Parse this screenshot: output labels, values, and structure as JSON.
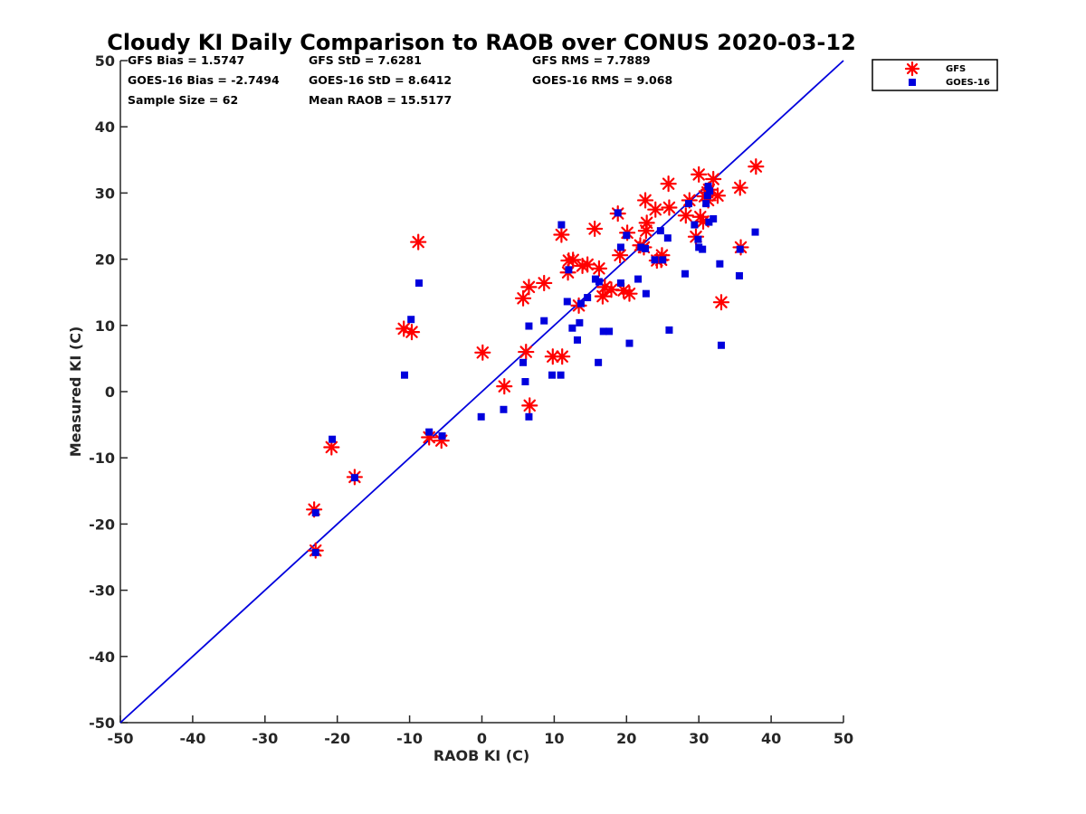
{
  "chart_data": {
    "type": "scatter",
    "title": "Cloudy KI Daily Comparison to RAOB over CONUS 2020-03-12",
    "xlabel": "RAOB KI (C)",
    "ylabel": "Measured KI (C)",
    "xlim": [
      -50,
      50
    ],
    "ylim": [
      -50,
      50
    ],
    "xticks": [
      "-50",
      "-40",
      "-30",
      "-20",
      "-10",
      "0",
      "10",
      "20",
      "30",
      "40",
      "50"
    ],
    "yticks": [
      "50",
      "40",
      "30",
      "20",
      "10",
      "0",
      "-10",
      "-20",
      "-30",
      "-40",
      "-50"
    ],
    "grid": false,
    "legend_position": "outside-top-right",
    "reference_line": {
      "x": [
        -50,
        50
      ],
      "y": [
        -50,
        50
      ],
      "color": "#0000dd"
    },
    "stats": {
      "gfs_bias": "GFS Bias = 1.5747",
      "gfs_std": "GFS StD = 7.6281",
      "gfs_rms": "GFS RMS = 7.7889",
      "goes_bias": "GOES-16 Bias = -2.7494",
      "goes_std": "GOES-16 StD = 8.6412",
      "goes_rms": "GOES-16 RMS = 9.068",
      "sample_size": "Sample Size = 62",
      "mean_raob": "Mean RAOB = 15.5177"
    },
    "series": [
      {
        "name": "GFS",
        "marker": "asterisk",
        "color": "#ff0000",
        "points": [
          [
            -23.2,
            -17.8
          ],
          [
            -23.0,
            -24.0
          ],
          [
            -20.8,
            -8.4
          ],
          [
            -17.6,
            -12.9
          ],
          [
            -10.8,
            9.5
          ],
          [
            -9.7,
            9.0
          ],
          [
            -8.8,
            22.6
          ],
          [
            -7.3,
            -6.9
          ],
          [
            -5.6,
            -7.4
          ],
          [
            0.1,
            5.9
          ],
          [
            3.1,
            0.8
          ],
          [
            5.7,
            14.1
          ],
          [
            6.1,
            6.0
          ],
          [
            6.5,
            15.8
          ],
          [
            6.6,
            -2.1
          ],
          [
            8.6,
            16.4
          ],
          [
            9.8,
            5.3
          ],
          [
            11.1,
            5.3
          ],
          [
            11.0,
            23.7
          ],
          [
            11.9,
            18.0
          ],
          [
            12.0,
            19.8
          ],
          [
            12.6,
            19.9
          ],
          [
            13.4,
            13.0
          ],
          [
            13.9,
            19.0
          ],
          [
            14.6,
            19.2
          ],
          [
            15.6,
            24.6
          ],
          [
            16.2,
            18.6
          ],
          [
            16.7,
            14.4
          ],
          [
            17.0,
            15.8
          ],
          [
            17.9,
            15.4
          ],
          [
            18.8,
            26.9
          ],
          [
            19.1,
            20.6
          ],
          [
            19.6,
            15.3
          ],
          [
            20.1,
            24.0
          ],
          [
            20.4,
            14.8
          ],
          [
            21.9,
            22.1
          ],
          [
            22.4,
            21.8
          ],
          [
            22.6,
            28.9
          ],
          [
            22.7,
            24.3
          ],
          [
            22.8,
            25.5
          ],
          [
            24.0,
            27.5
          ],
          [
            24.8,
            19.9
          ],
          [
            24.9,
            20.6
          ],
          [
            25.8,
            31.4
          ],
          [
            25.9,
            27.8
          ],
          [
            28.2,
            26.6
          ],
          [
            28.7,
            28.9
          ],
          [
            29.6,
            23.4
          ],
          [
            30.0,
            32.8
          ],
          [
            30.2,
            26.4
          ],
          [
            30.6,
            25.7
          ],
          [
            31.2,
            30.1
          ],
          [
            31.3,
            28.9
          ],
          [
            31.4,
            30.5
          ],
          [
            32.0,
            32.1
          ],
          [
            32.6,
            29.6
          ],
          [
            33.1,
            13.5
          ],
          [
            35.7,
            30.8
          ],
          [
            35.8,
            21.8
          ],
          [
            37.9,
            34.0
          ],
          [
            30.8,
            29.5
          ],
          [
            24.2,
            19.8
          ]
        ]
      },
      {
        "name": "GOES-16",
        "marker": "square",
        "color": "#0000dd",
        "points": [
          [
            -23.0,
            -18.3
          ],
          [
            -23.0,
            -24.3
          ],
          [
            -20.7,
            -7.2
          ],
          [
            -17.6,
            -13.0
          ],
          [
            -10.7,
            2.5
          ],
          [
            -9.8,
            10.9
          ],
          [
            -8.7,
            16.4
          ],
          [
            -7.3,
            -6.1
          ],
          [
            -5.5,
            -6.7
          ],
          [
            -0.1,
            -3.8
          ],
          [
            3.0,
            -2.7
          ],
          [
            5.7,
            4.4
          ],
          [
            6.0,
            1.5
          ],
          [
            6.5,
            9.9
          ],
          [
            6.5,
            -3.8
          ],
          [
            8.6,
            10.7
          ],
          [
            9.7,
            2.5
          ],
          [
            10.9,
            2.5
          ],
          [
            11.0,
            25.2
          ],
          [
            11.8,
            13.6
          ],
          [
            12.0,
            18.4
          ],
          [
            12.5,
            9.6
          ],
          [
            13.2,
            7.8
          ],
          [
            13.5,
            10.4
          ],
          [
            13.7,
            13.3
          ],
          [
            14.6,
            14.2
          ],
          [
            15.7,
            17.0
          ],
          [
            16.1,
            4.4
          ],
          [
            16.2,
            16.6
          ],
          [
            16.8,
            9.1
          ],
          [
            17.6,
            9.1
          ],
          [
            18.8,
            27.0
          ],
          [
            19.2,
            21.8
          ],
          [
            19.2,
            16.4
          ],
          [
            20.0,
            23.6
          ],
          [
            20.4,
            7.3
          ],
          [
            21.6,
            17.0
          ],
          [
            22.0,
            21.8
          ],
          [
            22.6,
            21.6
          ],
          [
            22.7,
            14.8
          ],
          [
            23.9,
            19.9
          ],
          [
            24.7,
            24.3
          ],
          [
            25.0,
            19.9
          ],
          [
            25.7,
            23.2
          ],
          [
            25.9,
            9.3
          ],
          [
            28.1,
            17.8
          ],
          [
            28.6,
            28.4
          ],
          [
            29.4,
            25.2
          ],
          [
            29.9,
            23.0
          ],
          [
            30.0,
            21.8
          ],
          [
            30.5,
            21.5
          ],
          [
            31.0,
            28.4
          ],
          [
            31.2,
            29.6
          ],
          [
            31.3,
            31.0
          ],
          [
            31.4,
            25.6
          ],
          [
            32.0,
            26.1
          ],
          [
            32.9,
            19.3
          ],
          [
            33.1,
            7.0
          ],
          [
            35.6,
            17.5
          ],
          [
            35.7,
            21.5
          ],
          [
            37.8,
            24.1
          ],
          [
            31.5,
            30.3
          ]
        ]
      }
    ]
  }
}
